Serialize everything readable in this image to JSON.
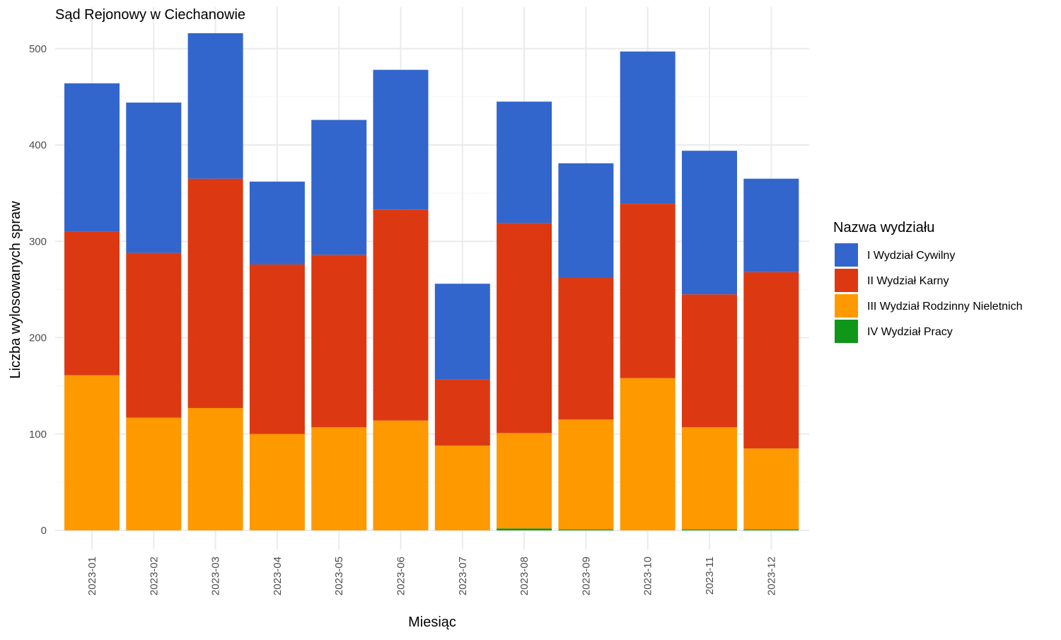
{
  "chart_data": {
    "type": "bar",
    "stacked": true,
    "title": "Sąd Rejonowy w Ciechanowie",
    "xlabel": "Miesiąc",
    "ylabel": "Liczba wylosowanych spraw",
    "ylim": [
      0,
      530
    ],
    "yticks": [
      0,
      100,
      200,
      300,
      400,
      500
    ],
    "grid": true,
    "legend_title": "Nazwa wydziału",
    "legend_position": "right",
    "categories": [
      "2023-01",
      "2023-02",
      "2023-03",
      "2023-04",
      "2023-05",
      "2023-06",
      "2023-07",
      "2023-08",
      "2023-09",
      "2023-10",
      "2023-11",
      "2023-12"
    ],
    "series": [
      {
        "name": "I Wydział Cywilny",
        "color": "#3366cc",
        "values": [
          154,
          156,
          151,
          86,
          140,
          145,
          99,
          126,
          119,
          158,
          149,
          97
        ]
      },
      {
        "name": "II Wydział Karny",
        "color": "#dc3912",
        "values": [
          149,
          171,
          238,
          176,
          179,
          219,
          69,
          218,
          147,
          181,
          138,
          183
        ]
      },
      {
        "name": "III Wydział Rodzinny Nieletnich",
        "color": "#ff9900",
        "values": [
          161,
          117,
          127,
          100,
          107,
          114,
          88,
          99,
          114,
          158,
          106,
          84
        ]
      },
      {
        "name": "IV Wydział Pracy",
        "color": "#109618",
        "values": [
          0,
          0,
          0,
          0,
          0,
          0,
          0,
          2,
          1,
          0,
          1,
          1
        ]
      }
    ]
  }
}
